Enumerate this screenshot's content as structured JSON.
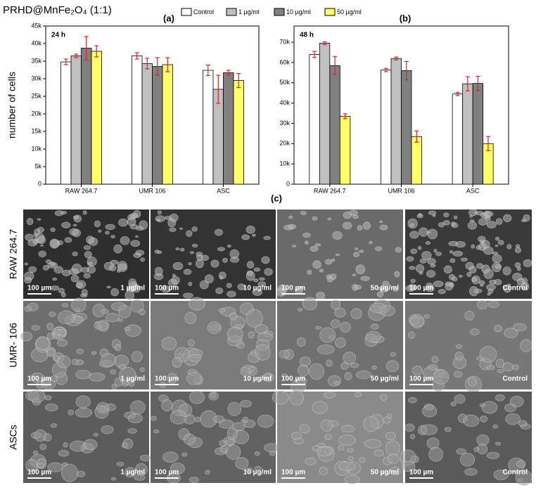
{
  "figure": {
    "title": "PRHD@MnFe₂O₄ (1:1)"
  },
  "chart_data": [
    {
      "type": "bar",
      "panel": "(a)",
      "annotation": "24 h",
      "ylabel": "number of cells",
      "categories": [
        "RAW 264.7",
        "UMR 106",
        "ASC"
      ],
      "series": [
        {
          "name": "Control",
          "color": "#ffffff",
          "values": [
            34800,
            36500,
            32400
          ],
          "errors": [
            800,
            900,
            1500
          ]
        },
        {
          "name": "1  µg/ml",
          "color": "#c0c0c0",
          "values": [
            36500,
            34300,
            27000
          ],
          "errors": [
            500,
            1500,
            4000
          ]
        },
        {
          "name": "10 µg/ml",
          "color": "#808080",
          "values": [
            38700,
            33500,
            31700
          ],
          "errors": [
            3300,
            2500,
            700
          ]
        },
        {
          "name": "50 µg/ml",
          "color": "#ffff66",
          "values": [
            37800,
            34000,
            29500
          ],
          "errors": [
            1600,
            2000,
            2000
          ]
        }
      ],
      "error_color": "#e02020",
      "ylim": [
        0,
        45000
      ],
      "yticks": [
        0,
        {
          "value": 5000,
          "label": "5k"
        },
        {
          "value": 10000,
          "label": "10k"
        },
        {
          "value": 15000,
          "label": "15k"
        },
        {
          "value": 20000,
          "label": "20k"
        },
        {
          "value": 25000,
          "label": "25k"
        },
        {
          "value": 30000,
          "label": "30k"
        },
        {
          "value": 35000,
          "label": "35k"
        },
        {
          "value": 40000,
          "label": "40k"
        },
        {
          "value": 45000,
          "label": "45k"
        }
      ]
    },
    {
      "type": "bar",
      "panel": "(b)",
      "annotation": "48 h",
      "categories": [
        "RAW 264.7",
        "UMR 106",
        "ASC"
      ],
      "series": [
        {
          "color": "#ffffff",
          "values": [
            64000,
            56300,
            44500
          ],
          "errors": [
            1500,
            800,
            800
          ]
        },
        {
          "color": "#c0c0c0",
          "values": [
            69500,
            62000,
            49500
          ],
          "errors": [
            700,
            700,
            3500
          ]
        },
        {
          "color": "#808080",
          "values": [
            58500,
            56000,
            49700
          ],
          "errors": [
            4500,
            4500,
            3500
          ]
        },
        {
          "color": "#ffff66",
          "values": [
            33500,
            23500,
            20000
          ],
          "errors": [
            1200,
            2800,
            3500
          ]
        }
      ],
      "error_color": "#e02020",
      "ylim": [
        0,
        78000
      ],
      "yticks": [
        0,
        {
          "value": 10000,
          "label": "10k"
        },
        {
          "value": 20000,
          "label": "20k"
        },
        {
          "value": 30000,
          "label": "30k"
        },
        {
          "value": 40000,
          "label": "40k"
        },
        {
          "value": 50000,
          "label": "50k"
        },
        {
          "value": 60000,
          "label": "60k"
        },
        {
          "value": 70000,
          "label": "70k"
        }
      ]
    }
  ],
  "micrographs": {
    "panel": "(c)",
    "scale_bar": "100 µm",
    "rows": [
      "RAW 264.7",
      "UMR- 106",
      "ASCs"
    ],
    "columns": [
      "1 µg/ml",
      "10 µg/ml",
      "50 µg/ml",
      "Control"
    ]
  }
}
